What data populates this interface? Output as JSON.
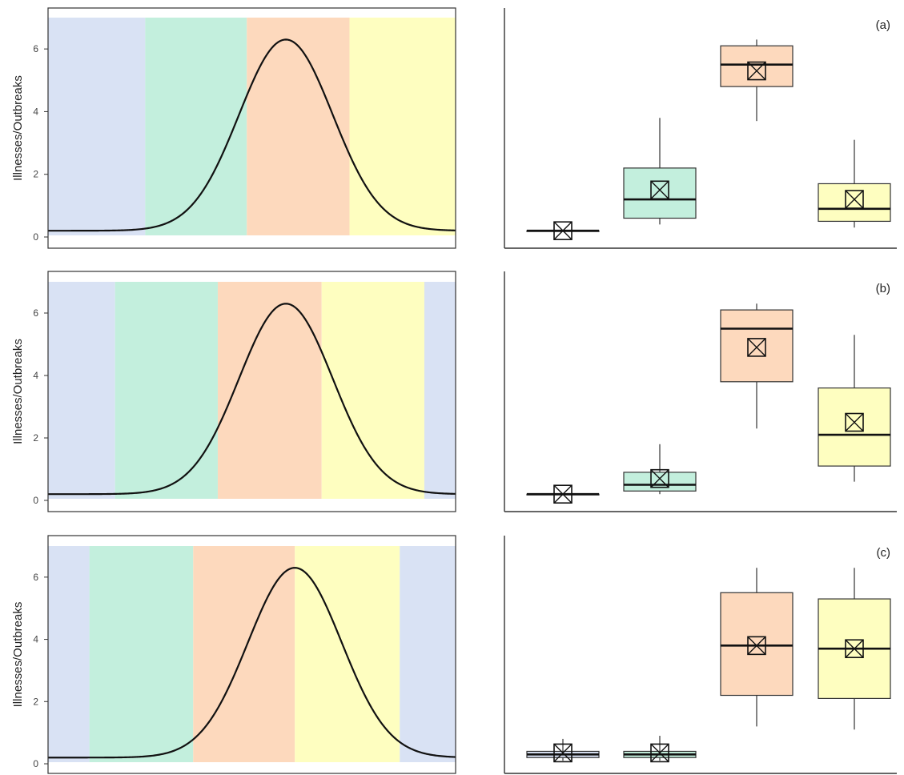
{
  "colors": {
    "winter": "#d9e2f4",
    "spring": "#c3efdd",
    "summer": "#fdd9bd",
    "autumn": "#fefec0",
    "curve": "#111111",
    "axis": "#333333"
  },
  "chart_data": [
    {
      "type": "area",
      "panel_label": "(a)",
      "ylabel": "Illnesses/Outbreaks",
      "yticks": [
        0,
        2,
        4,
        6
      ],
      "ylim": [
        0,
        7
      ],
      "xlim": [
        0,
        365
      ],
      "curve": {
        "peak_x": 213,
        "peak_y": 6.3,
        "base_y": 0.2,
        "width": 42
      },
      "bands": [
        {
          "season": "winter",
          "start": 0,
          "end": 87
        },
        {
          "season": "spring",
          "start": 87,
          "end": 178
        },
        {
          "season": "summer",
          "start": 178,
          "end": 270
        },
        {
          "season": "autumn",
          "start": 270,
          "end": 365
        }
      ],
      "boxes": [
        {
          "season": "winter",
          "min": 0.2,
          "q1": 0.2,
          "median": 0.2,
          "q3": 0.2,
          "max": 0.2,
          "mean": 0.2
        },
        {
          "season": "spring",
          "min": 0.4,
          "q1": 0.6,
          "median": 1.2,
          "q3": 2.2,
          "max": 3.8,
          "mean": 1.5
        },
        {
          "season": "summer",
          "min": 3.7,
          "q1": 4.8,
          "median": 5.5,
          "q3": 6.1,
          "max": 6.3,
          "mean": 5.3
        },
        {
          "season": "autumn",
          "min": 0.3,
          "q1": 0.5,
          "median": 0.9,
          "q3": 1.7,
          "max": 3.1,
          "mean": 1.2
        }
      ]
    },
    {
      "type": "area",
      "panel_label": "(b)",
      "ylabel": "Illnesses/Outbreaks",
      "yticks": [
        0,
        2,
        4,
        6
      ],
      "ylim": [
        0,
        7
      ],
      "xlim": [
        0,
        365
      ],
      "curve": {
        "peak_x": 213,
        "peak_y": 6.3,
        "base_y": 0.2,
        "width": 42
      },
      "bands": [
        {
          "season": "winter",
          "start": 0,
          "end": 60
        },
        {
          "season": "spring",
          "start": 60,
          "end": 152
        },
        {
          "season": "summer",
          "start": 152,
          "end": 245
        },
        {
          "season": "autumn",
          "start": 245,
          "end": 337
        },
        {
          "season": "winter",
          "start": 337,
          "end": 365
        }
      ],
      "boxes": [
        {
          "season": "winter",
          "min": 0.2,
          "q1": 0.2,
          "median": 0.2,
          "q3": 0.2,
          "max": 0.2,
          "mean": 0.2
        },
        {
          "season": "spring",
          "min": 0.2,
          "q1": 0.3,
          "median": 0.5,
          "q3": 0.9,
          "max": 1.8,
          "mean": 0.7
        },
        {
          "season": "summer",
          "min": 2.3,
          "q1": 3.8,
          "median": 5.5,
          "q3": 6.1,
          "max": 6.3,
          "mean": 4.9
        },
        {
          "season": "autumn",
          "min": 0.6,
          "q1": 1.1,
          "median": 2.1,
          "q3": 3.6,
          "max": 5.3,
          "mean": 2.5
        }
      ]
    },
    {
      "type": "area",
      "panel_label": "(c)",
      "ylabel": "Illnesses/Outbreaks",
      "yticks": [
        0,
        2,
        4,
        6
      ],
      "ylim": [
        0,
        7
      ],
      "xlim": [
        0,
        365
      ],
      "curve": {
        "peak_x": 221,
        "peak_y": 6.3,
        "base_y": 0.2,
        "width": 42
      },
      "bands": [
        {
          "season": "winter",
          "start": 0,
          "end": 37
        },
        {
          "season": "spring",
          "start": 37,
          "end": 130
        },
        {
          "season": "summer",
          "start": 130,
          "end": 221
        },
        {
          "season": "autumn",
          "start": 221,
          "end": 315
        },
        {
          "season": "winter",
          "start": 315,
          "end": 365
        }
      ],
      "boxes": [
        {
          "season": "winter",
          "min": 0.1,
          "q1": 0.2,
          "median": 0.3,
          "q3": 0.4,
          "max": 0.8,
          "mean": 0.35
        },
        {
          "season": "spring",
          "min": 0.1,
          "q1": 0.2,
          "median": 0.3,
          "q3": 0.4,
          "max": 0.9,
          "mean": 0.35
        },
        {
          "season": "summer",
          "min": 1.2,
          "q1": 2.2,
          "median": 3.8,
          "q3": 5.5,
          "max": 6.3,
          "mean": 3.8
        },
        {
          "season": "autumn",
          "min": 1.1,
          "q1": 2.1,
          "median": 3.7,
          "q3": 5.3,
          "max": 6.3,
          "mean": 3.7
        }
      ]
    }
  ]
}
